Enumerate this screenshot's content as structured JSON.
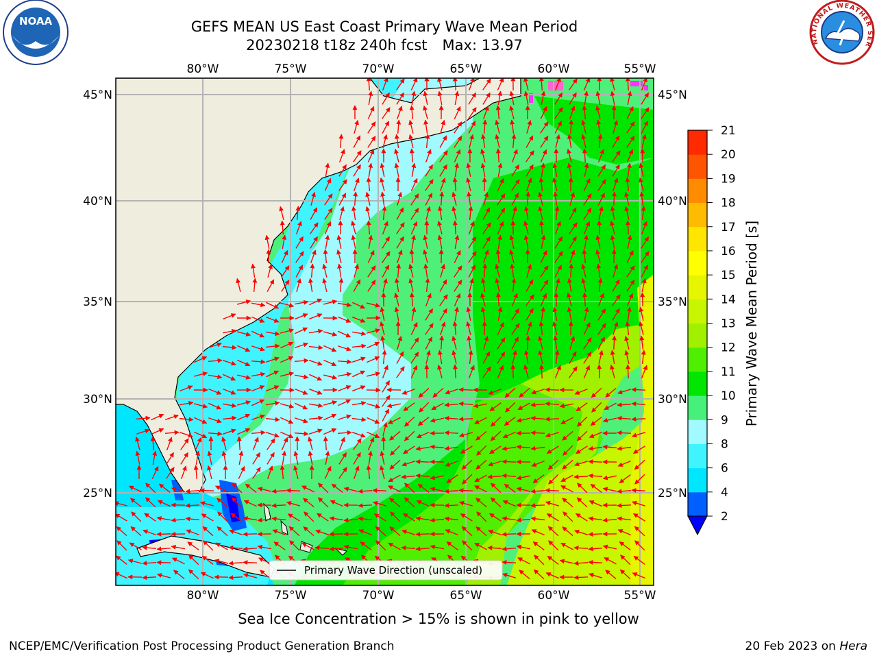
{
  "header": {
    "title": "GEFS MEAN US East Coast Primary Wave Mean Period",
    "subtitle_run": "20230218 t18z 240h fcst",
    "subtitle_max": "Max: 13.97"
  },
  "logos": {
    "left": {
      "text": "NOAA",
      "icon": "noaa-logo"
    },
    "right": {
      "text": "NATIONAL WEATHER SERVICE",
      "icon": "nws-logo"
    }
  },
  "map": {
    "lon_ticks": [
      "80°W",
      "75°W",
      "70°W",
      "65°W",
      "60°W",
      "55°W"
    ],
    "lat_ticks": [
      "45°N",
      "40°N",
      "35°N",
      "30°N",
      "25°N"
    ],
    "legend_label": "Primary Wave Direction (unscaled)",
    "vector_color": "#ff0000",
    "land_color": "#efedde"
  },
  "colorbar": {
    "label": "Primary Wave Mean Period [s]",
    "ticks": [
      "2",
      "4",
      "6",
      "8",
      "9",
      "10",
      "11",
      "12",
      "13",
      "14",
      "15",
      "16",
      "17",
      "18",
      "19",
      "20",
      "21"
    ],
    "colors": [
      "#0060ff",
      "#00e6ff",
      "#40f4ff",
      "#a0faff",
      "#46f07a",
      "#00e600",
      "#50ee00",
      "#a0f000",
      "#c8f500",
      "#e6f500",
      "#ffff00",
      "#ffe600",
      "#ffbb00",
      "#ff8c00",
      "#ff5500",
      "#ff2a00",
      "#ff0000"
    ],
    "under_color": "#0000ff"
  },
  "footer": {
    "note": "Sea Ice Concentration > 15% is shown in pink to yellow",
    "branch": "NCEP/EMC/Verification Post Processing Product Generation Branch",
    "date": "20 Feb 2023 on ",
    "machine": "Hera"
  }
}
